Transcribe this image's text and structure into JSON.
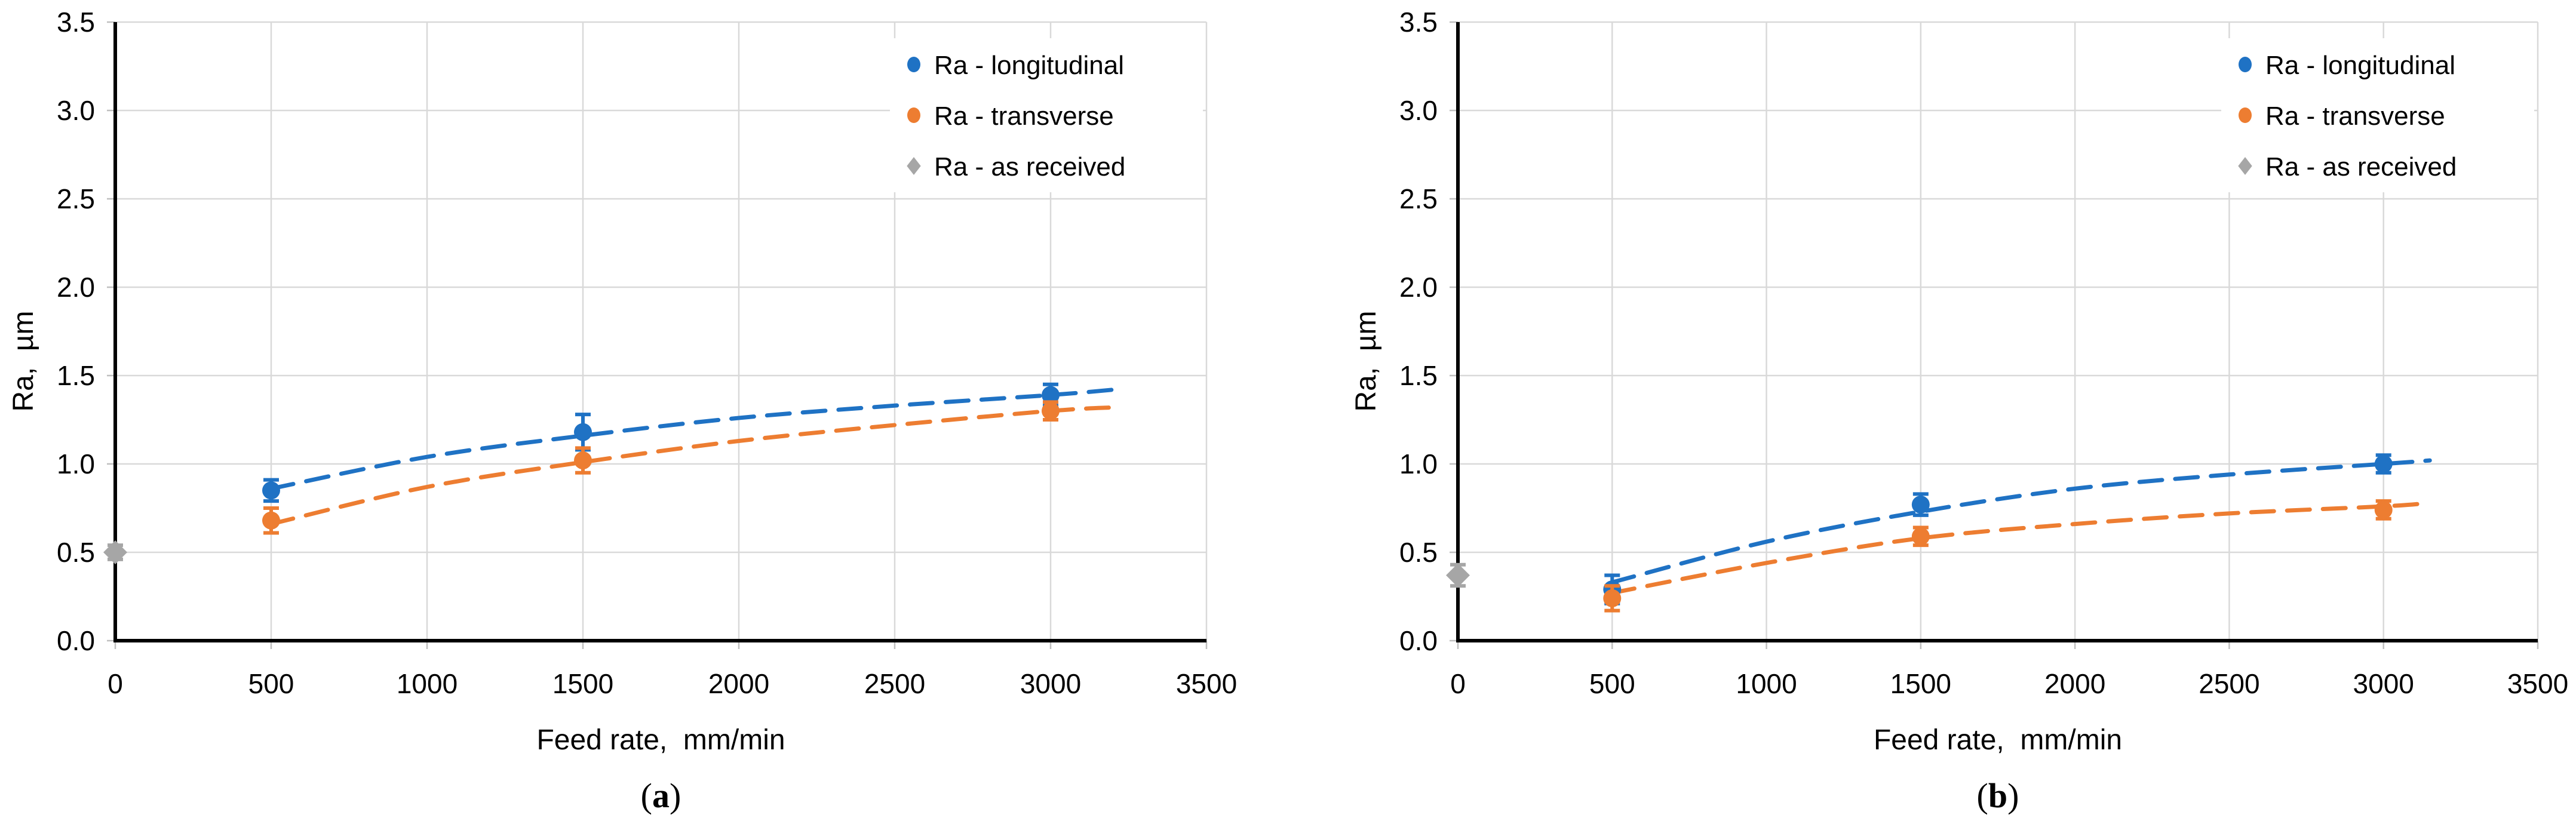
{
  "style": {
    "background": "#ffffff",
    "grid_color": "#d9d9d9",
    "tick_stub_color": "#bfbfbf",
    "axis_color": "#000000",
    "text_color": "#000000",
    "blue": "#1f72c4",
    "orange": "#ed7d31",
    "gray": "#a6a6a6"
  },
  "chart_data": [
    {
      "type": "scatter",
      "panel_label": "(a)",
      "xlabel": "Feed rate,  mm/min",
      "ylabel": "Ra,  µm",
      "xlim": [
        0,
        3500
      ],
      "ylim": [
        0,
        3.5
      ],
      "x_ticks": [
        "0",
        "500",
        "1000",
        "1500",
        "2000",
        "2500",
        "3000",
        "3500"
      ],
      "y_ticks": [
        "0.0",
        "0.5",
        "1.0",
        "1.5",
        "2.0",
        "2.5",
        "3.0",
        "3.5"
      ],
      "grid": true,
      "legend_position": "top-right",
      "series": [
        {
          "name": "Ra - longitudinal",
          "marker": "circle",
          "color": "#1f72c4",
          "x": [
            500,
            1500,
            3000
          ],
          "y": [
            0.85,
            1.18,
            1.39
          ],
          "yerr": [
            0.06,
            0.1,
            0.06
          ],
          "trendline": {
            "style": "dashed",
            "points": [
              [
                500,
                0.86
              ],
              [
                1000,
                1.04
              ],
              [
                1500,
                1.16
              ],
              [
                2000,
                1.26
              ],
              [
                2500,
                1.33
              ],
              [
                3000,
                1.39
              ],
              [
                3200,
                1.42
              ]
            ]
          }
        },
        {
          "name": "Ra - transverse",
          "marker": "circle",
          "color": "#ed7d31",
          "x": [
            500,
            1500,
            3000
          ],
          "y": [
            0.68,
            1.02,
            1.3
          ],
          "yerr": [
            0.07,
            0.07,
            0.05
          ],
          "trendline": {
            "style": "dashed",
            "points": [
              [
                500,
                0.66
              ],
              [
                1000,
                0.87
              ],
              [
                1500,
                1.01
              ],
              [
                2000,
                1.13
              ],
              [
                2500,
                1.22
              ],
              [
                3000,
                1.3
              ],
              [
                3200,
                1.32
              ]
            ]
          }
        },
        {
          "name": "Ra - as received",
          "marker": "diamond",
          "color": "#a6a6a6",
          "x": [
            0
          ],
          "y": [
            0.5
          ],
          "yerr": [
            0.04
          ],
          "trendline": null
        }
      ]
    },
    {
      "type": "scatter",
      "panel_label": "(b)",
      "xlabel": "Feed rate,  mm/min",
      "ylabel": "Ra,  µm",
      "xlim": [
        0,
        3500
      ],
      "ylim": [
        0,
        3.5
      ],
      "x_ticks": [
        "0",
        "500",
        "1000",
        "1500",
        "2000",
        "2500",
        "3000",
        "3500"
      ],
      "y_ticks": [
        "0.0",
        "0.5",
        "1.0",
        "1.5",
        "2.0",
        "2.5",
        "3.0",
        "3.5"
      ],
      "grid": true,
      "legend_position": "top-right",
      "series": [
        {
          "name": "Ra - longitudinal",
          "marker": "circle",
          "color": "#1f72c4",
          "x": [
            500,
            1500,
            3000
          ],
          "y": [
            0.29,
            0.77,
            1.0
          ],
          "yerr": [
            0.08,
            0.06,
            0.05
          ],
          "trendline": {
            "style": "dashed",
            "points": [
              [
                500,
                0.33
              ],
              [
                1000,
                0.56
              ],
              [
                1500,
                0.73
              ],
              [
                2000,
                0.86
              ],
              [
                2500,
                0.94
              ],
              [
                3000,
                1.0
              ],
              [
                3150,
                1.02
              ]
            ]
          }
        },
        {
          "name": "Ra - transverse",
          "marker": "circle",
          "color": "#ed7d31",
          "x": [
            500,
            1500,
            3000
          ],
          "y": [
            0.24,
            0.59,
            0.74
          ],
          "yerr": [
            0.07,
            0.05,
            0.05
          ],
          "trendline": {
            "style": "dashed",
            "points": [
              [
                500,
                0.27
              ],
              [
                1000,
                0.44
              ],
              [
                1500,
                0.58
              ],
              [
                2000,
                0.66
              ],
              [
                2500,
                0.72
              ],
              [
                3000,
                0.76
              ],
              [
                3150,
                0.78
              ]
            ]
          }
        },
        {
          "name": "Ra - as received",
          "marker": "diamond",
          "color": "#a6a6a6",
          "x": [
            0
          ],
          "y": [
            0.37
          ],
          "yerr": [
            0.06
          ],
          "trendline": null
        }
      ]
    }
  ]
}
